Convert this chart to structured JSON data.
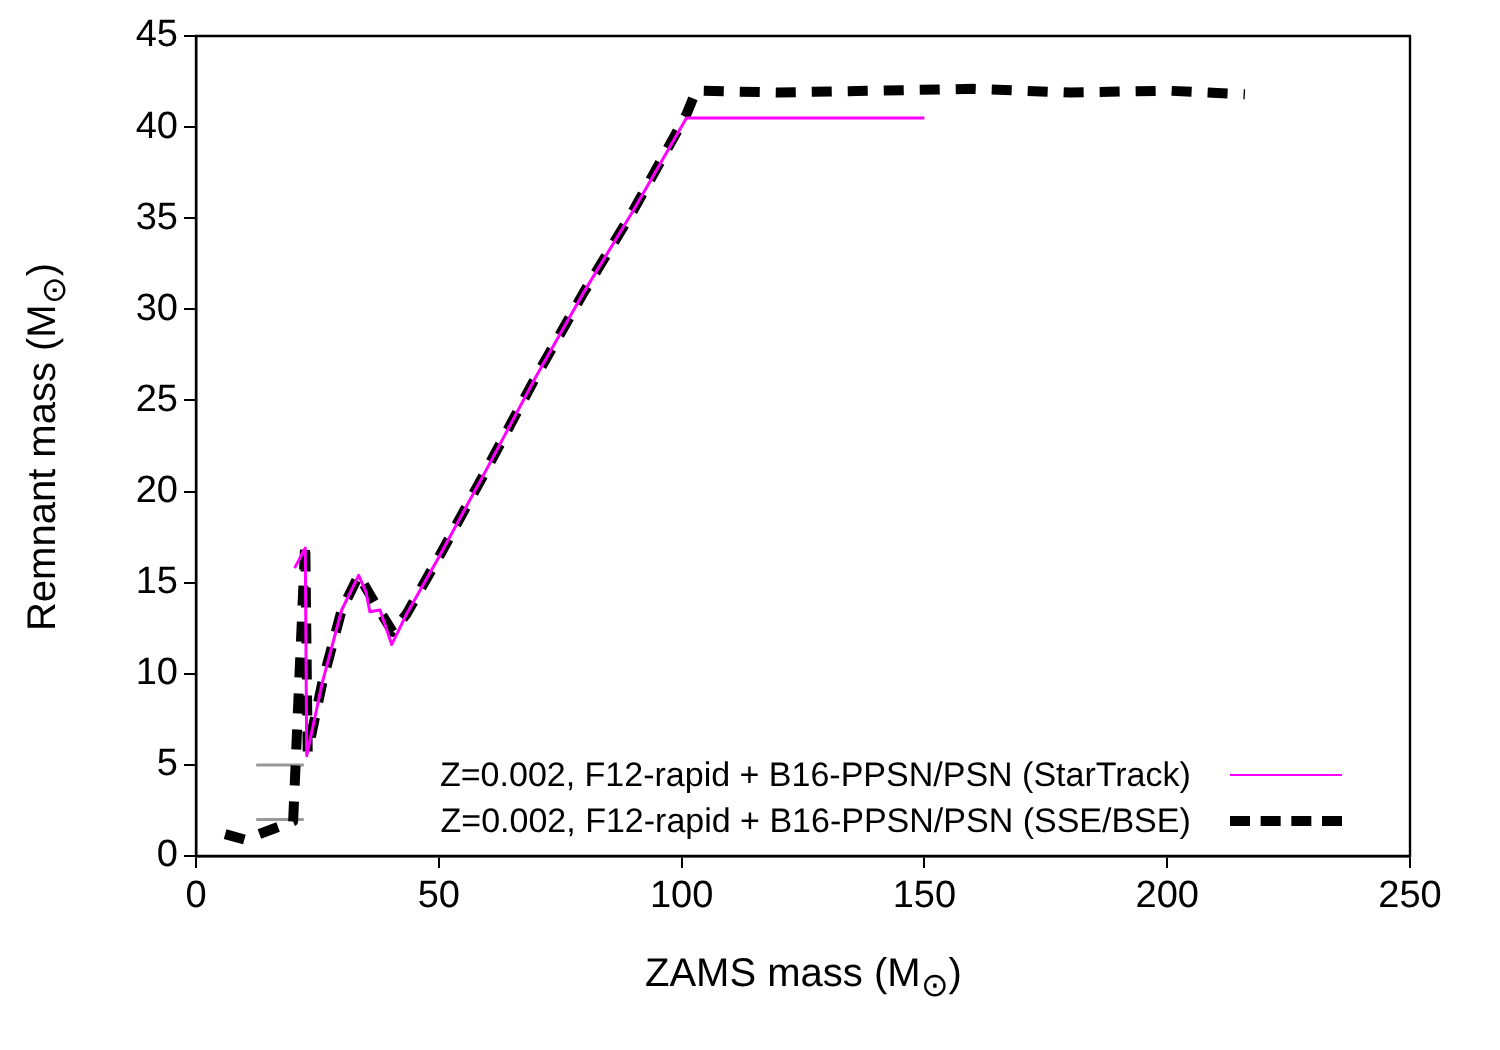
{
  "chart_data": {
    "type": "line",
    "xlabel": "ZAMS mass (M$_{⊙}$)",
    "ylabel": "Remnant mass (M$_{⊙}$)",
    "xlim": [
      0,
      250
    ],
    "xticks": [
      0,
      50,
      100,
      150,
      200,
      250
    ],
    "ylim": [
      0,
      45
    ],
    "yticks": [
      0,
      5,
      10,
      15,
      20,
      25,
      30,
      35,
      40,
      45
    ],
    "grid": false,
    "legend": "bottom right",
    "marker": "none",
    "series": [
      {
        "name": "Z=0.002, F12-rapid + B16-PPSN/PSN (StarTrack)",
        "color": "#ff00ff",
        "line_style": "solid",
        "x": [
          20.3,
          22.5,
          22.8,
          26,
          30,
          33.5,
          35,
          35.8,
          37.9,
          40.3,
          43.4,
          50,
          60,
          70,
          80,
          90,
          101,
          150
        ],
        "values": [
          15.8,
          16.9,
          5.5,
          9.5,
          13.5,
          15.4,
          14.5,
          13.4,
          13.5,
          11.6,
          13.3,
          16.4,
          21.3,
          26.3,
          31.0,
          35.4,
          40.5,
          40.5
        ]
      },
      {
        "name": "Z=0.002, F12-rapid + B16-PPSN/PSN (SSE/BSE)",
        "color": "#000000",
        "line_style": "dashed",
        "x": [
          6,
          10,
          20,
          22.5,
          23,
          26,
          30,
          33.5,
          37,
          40.5,
          43.4,
          50,
          60,
          70,
          80,
          90,
          101,
          103,
          120,
          140,
          160,
          180,
          200,
          216
        ],
        "values": [
          1.2,
          0.9,
          1.9,
          17.2,
          5.7,
          9.5,
          13.5,
          15.4,
          13.8,
          12.3,
          13.3,
          16.4,
          21.3,
          26.3,
          31.0,
          35.4,
          40.7,
          42.0,
          41.9,
          42.0,
          42.1,
          41.9,
          42.0,
          41.8
        ]
      },
      {
        "color": "#999999",
        "line_style": "solid",
        "x": [
          12.4,
          22.2
        ],
        "values": [
          5.0,
          5.0
        ]
      },
      {
        "color": "#999999",
        "line_style": "solid",
        "x": [
          12.4,
          22.2
        ],
        "values": [
          2.0,
          2.0
        ]
      }
    ]
  }
}
